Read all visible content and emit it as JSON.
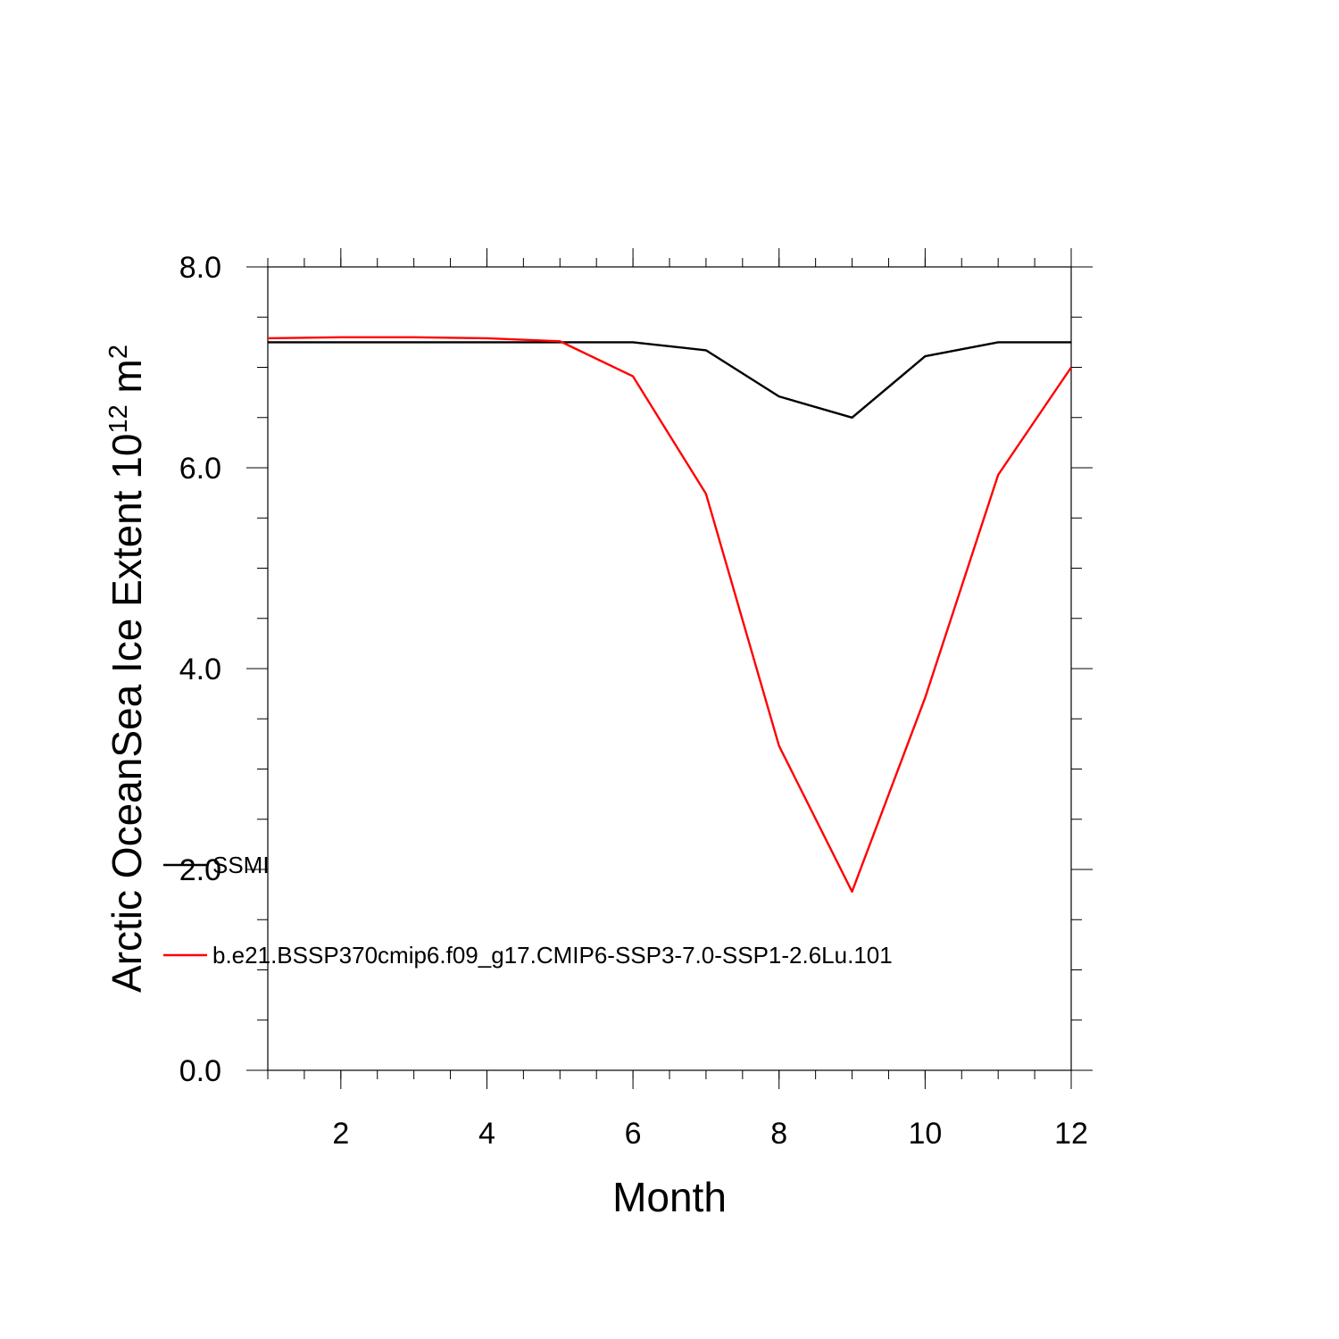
{
  "chart_data": {
    "type": "line",
    "xlabel": "Month",
    "ylabel": "Arctic OceanSea Ice Extent 10",
    "ylabel_sup": "12",
    "ylabel_unit": " m",
    "ylabel_unit_sup": "2",
    "xlim": [
      1,
      12
    ],
    "ylim": [
      0,
      8
    ],
    "x_ticks": [
      2,
      4,
      6,
      8,
      10,
      12
    ],
    "x_tick_labels": [
      "2",
      "4",
      "6",
      "8",
      "10",
      "12"
    ],
    "y_ticks": [
      0,
      2,
      4,
      6,
      8
    ],
    "y_tick_labels": [
      "0.0",
      "2.0",
      "4.0",
      "6.0",
      "8.0"
    ],
    "grid": false,
    "legend_position": "left-inside",
    "x": [
      1,
      2,
      3,
      4,
      5,
      6,
      7,
      8,
      9,
      10,
      11,
      12
    ],
    "series": [
      {
        "name": "SSMI",
        "color": "#000000",
        "values": [
          7.25,
          7.25,
          7.25,
          7.25,
          7.25,
          7.25,
          7.17,
          6.71,
          6.5,
          7.11,
          7.25,
          7.25
        ]
      },
      {
        "name": "b.e21.BSSP370cmip6.f09_g17.CMIP6-SSP3-7.0-SSP1-2.6Lu.101",
        "color": "#ff0000",
        "values": [
          7.29,
          7.3,
          7.3,
          7.29,
          7.26,
          6.91,
          5.74,
          3.23,
          1.78,
          3.71,
          5.93,
          7.0
        ]
      }
    ]
  }
}
